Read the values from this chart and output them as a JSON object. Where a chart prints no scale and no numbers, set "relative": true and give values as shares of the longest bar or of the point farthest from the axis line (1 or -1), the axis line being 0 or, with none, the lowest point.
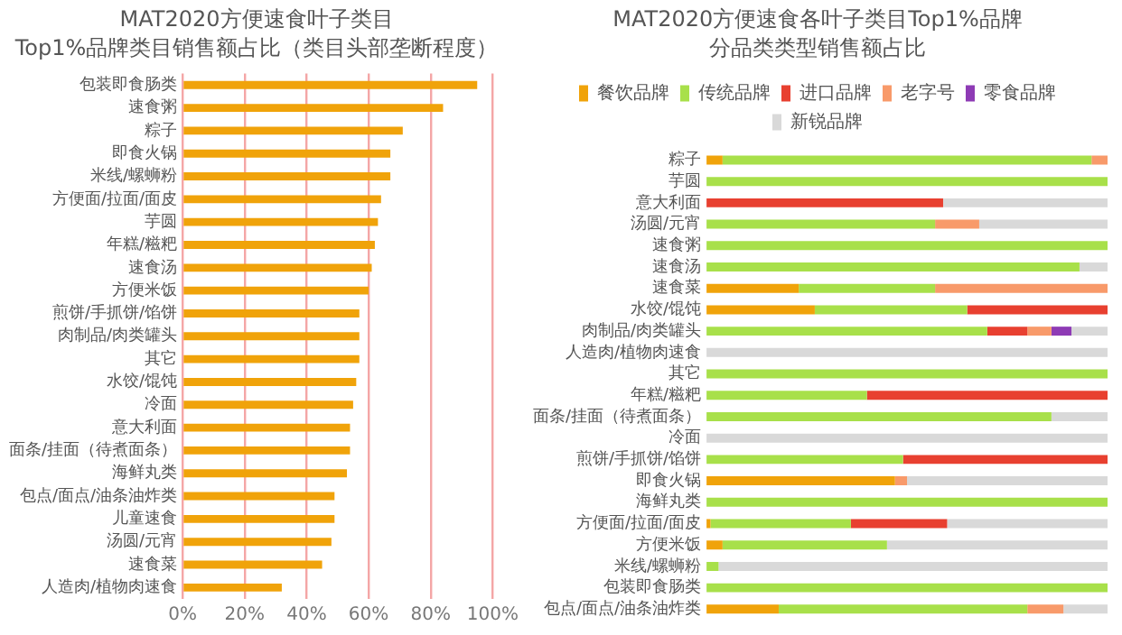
{
  "chart_data": [
    {
      "type": "bar",
      "orientation": "horizontal",
      "title": "MAT2020方便速食叶子类目",
      "subtitle": "Top1%品牌类目销售额占比（类目头部垄断程度）",
      "categories": [
        "包装即食肠类",
        "速食粥",
        "粽子",
        "即食火锅",
        "米线/螺蛳粉",
        "方便面/拉面/面皮",
        "芋圆",
        "年糕/糍粑",
        "速食汤",
        "方便米饭",
        "煎饼/手抓饼/馅饼",
        "肉制品/肉类罐头",
        "其它",
        "水饺/馄饨",
        "冷面",
        "意大利面",
        "面条/挂面（待煮面条）",
        "海鲜丸类",
        "包点/面点/油条油炸类",
        "儿童速食",
        "汤圆/元宵",
        "速食菜",
        "人造肉/植物肉速食"
      ],
      "values": [
        95,
        84,
        71,
        67,
        67,
        64,
        63,
        62,
        61,
        60,
        57,
        57,
        57,
        56,
        55,
        54,
        54,
        53,
        49,
        49,
        48,
        45,
        32
      ],
      "color": "#f0a30a",
      "xlim": [
        0,
        100
      ],
      "xticks": [
        {
          "value": 0,
          "label": "0%"
        },
        {
          "value": 20,
          "label": "20%"
        },
        {
          "value": 40,
          "label": "40%"
        },
        {
          "value": 60,
          "label": "60%"
        },
        {
          "value": 80,
          "label": "80%"
        },
        {
          "value": 100,
          "label": "100%"
        }
      ],
      "grid": "x",
      "legend": false
    },
    {
      "type": "bar",
      "orientation": "horizontal",
      "stacked": true,
      "relative": true,
      "title": "MAT2020方便速食各叶子类目Top1%品牌",
      "subtitle": "分品类类型销售额占比",
      "categories": [
        "粽子",
        "芋圆",
        "意大利面",
        "汤圆/元宵",
        "速食粥",
        "速食汤",
        "速食菜",
        "水饺/馄饨",
        "肉制品/肉类罐头",
        "人造肉/植物肉速食",
        "其它",
        "年糕/糍粑",
        "面条/挂面（待煮面条）",
        "冷面",
        "煎饼/手抓饼/馅饼",
        "即食火锅",
        "海鲜丸类",
        "方便面/拉面/面皮",
        "方便米饭",
        "米线/螺蛳粉",
        "包装即食肠类",
        "包点/面点/油条油炸类"
      ],
      "series": [
        {
          "name": "餐饮品牌",
          "color": "#f0a30a",
          "values": [
            0.04,
            null,
            null,
            null,
            null,
            null,
            0.23,
            0.27,
            null,
            null,
            null,
            null,
            null,
            null,
            null,
            0.47,
            null,
            0.01,
            0.04,
            null,
            null,
            0.18
          ]
        },
        {
          "name": "传统品牌",
          "color": "#a8e04a",
          "values": [
            0.92,
            1,
            null,
            0.57,
            1,
            0.93,
            0.34,
            0.38,
            0.7,
            null,
            1,
            0.4,
            0.86,
            null,
            0.49,
            null,
            1,
            0.35,
            0.41,
            0.03,
            1,
            0.62
          ]
        },
        {
          "name": "进口品牌",
          "color": "#e84030",
          "values": [
            null,
            null,
            0.59,
            null,
            null,
            null,
            null,
            0.35,
            0.1,
            null,
            null,
            0.6,
            null,
            null,
            0.51,
            null,
            null,
            0.24,
            null,
            null,
            null,
            null
          ]
        },
        {
          "name": "老字号",
          "color": "#f89a6a",
          "values": [
            0.04,
            null,
            null,
            0.11,
            null,
            null,
            0.43,
            null,
            0.06,
            null,
            null,
            null,
            null,
            null,
            null,
            0.03,
            null,
            null,
            null,
            null,
            null,
            0.09
          ]
        },
        {
          "name": "零食品牌",
          "color": "#8e3bb5",
          "values": [
            null,
            null,
            null,
            null,
            null,
            null,
            null,
            null,
            0.05,
            null,
            null,
            null,
            null,
            null,
            null,
            null,
            null,
            null,
            null,
            null,
            null,
            null
          ]
        },
        {
          "name": "新锐品牌",
          "color": "#d9d9d9",
          "values": [
            null,
            null,
            0.41,
            0.32,
            null,
            0.07,
            null,
            null,
            0.09,
            1,
            null,
            null,
            0.14,
            1,
            null,
            0.5,
            null,
            0.4,
            0.55,
            0.97,
            null,
            0.11
          ]
        }
      ],
      "legend": "top",
      "grid": false
    }
  ]
}
